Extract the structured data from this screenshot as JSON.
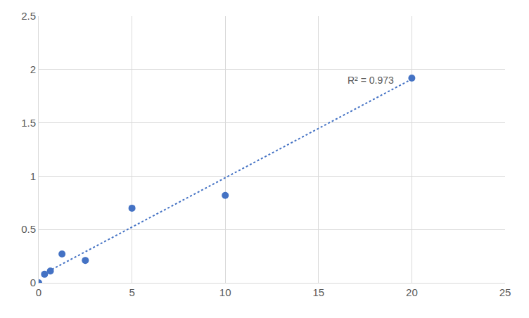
{
  "chart_data": {
    "type": "scatter",
    "series": [
      {
        "type": "scatter",
        "marker": "circle",
        "color": "#4472c4",
        "x": [
          0,
          0.3125,
          0.625,
          1.25,
          2.5,
          5,
          10,
          20
        ],
        "values": [
          0,
          0.08,
          0.11,
          0.27,
          0.21,
          0.7,
          0.82,
          1.92
        ]
      },
      {
        "type": "line",
        "line_style": "dotted",
        "color": "#4472c4",
        "x": [
          0.3125,
          20
        ],
        "values": [
          0.089,
          1.91
        ]
      }
    ],
    "annotations": [
      {
        "text": "R² = 0.973",
        "x": 17.8,
        "y": 1.9
      }
    ],
    "xlim": [
      0,
      25
    ],
    "xticks": [
      0,
      5,
      10,
      15,
      20,
      25
    ],
    "ylim": [
      0,
      2.5
    ],
    "yticks": [
      0,
      0.5,
      1,
      1.5,
      2,
      2.5
    ],
    "grid": true
  }
}
